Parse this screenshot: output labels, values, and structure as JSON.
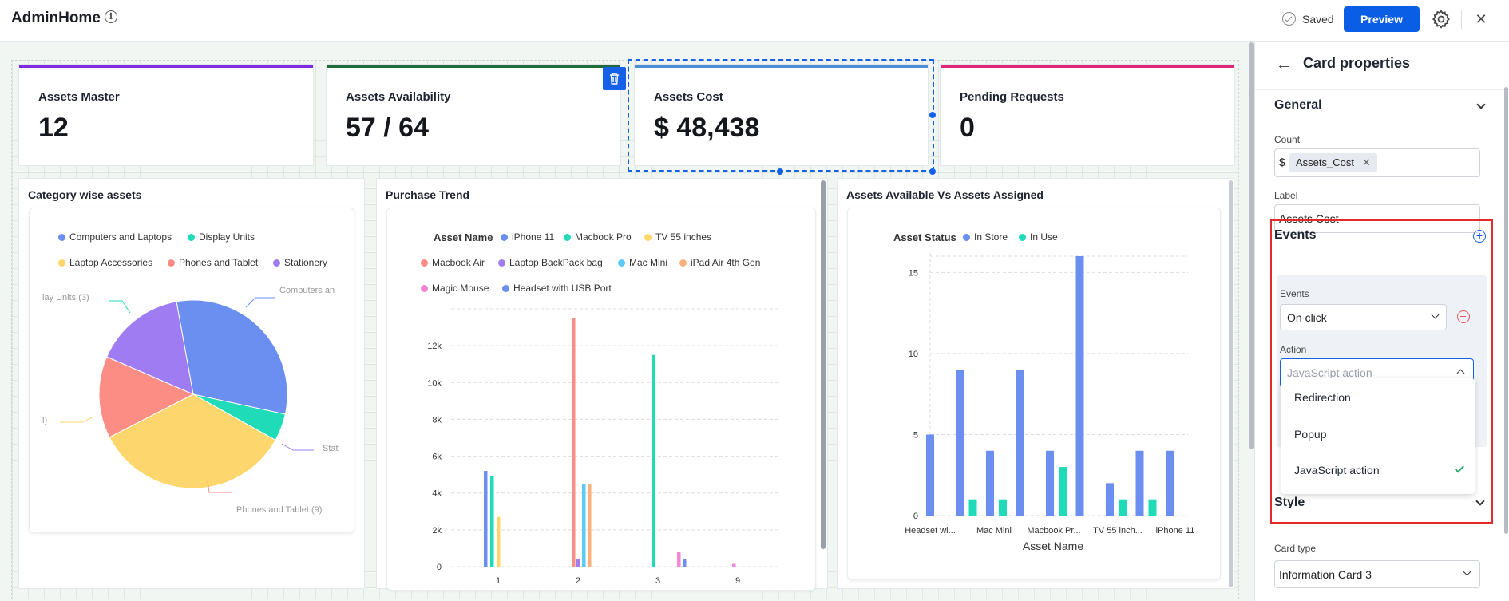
{
  "app": {
    "title": "AdminHome",
    "saved_label": "Saved",
    "preview_label": "Preview"
  },
  "kpis": [
    {
      "label": "Assets Master",
      "value": "12",
      "color": "#7b2ee0"
    },
    {
      "label": "Assets Availability",
      "value": "57 / 64",
      "color": "#1f6b3a"
    },
    {
      "label": "Assets Cost",
      "value": "$ 48,438",
      "color": "#4b8fd4"
    },
    {
      "label": "Pending Requests",
      "value": "0",
      "color": "#e0267d"
    }
  ],
  "panels": {
    "category": {
      "title": "Category wise assets",
      "legend": [
        "Computers and Laptops",
        "Display Units",
        "Laptop Accessories",
        "Phones and Tablet",
        "Stationery"
      ],
      "callouts": [
        "Computers an",
        "lay Units (3)",
        "l)",
        "Phones and Tablet (9)",
        "Stat"
      ]
    },
    "purchase": {
      "title": "Purchase Trend",
      "legend_title": "Asset Name",
      "legend": [
        "iPhone 11",
        "Macbook Pro",
        "TV 55 inches",
        "Macbook Air",
        "Laptop BackPack bag",
        "Mac Mini",
        "iPad Air 4th Gen",
        "Magic Mouse",
        "Headset with USB Port"
      ]
    },
    "available": {
      "title": "Assets Available Vs Assets Assigned",
      "legend_title": "Asset Status",
      "legend": [
        "In Store",
        "In Use"
      ]
    }
  },
  "chart_data": [
    {
      "type": "pie",
      "title": "Category wise assets",
      "categories": [
        "Computers and Laptops",
        "Display Units",
        "Laptop Accessories",
        "Phones and Tablet",
        "Stationery"
      ],
      "values": [
        20,
        3,
        22,
        9,
        10
      ],
      "colors": [
        "#6b8ff0",
        "#1fdbb8",
        "#fdd76d",
        "#fb8d84",
        "#a07cf2"
      ]
    },
    {
      "type": "bar",
      "title": "Purchase Trend",
      "categories": [
        "1",
        "2",
        "3",
        "9"
      ],
      "ylim": [
        0,
        14000
      ],
      "yticks": [
        "0",
        "2k",
        "4k",
        "6k",
        "8k",
        "10k",
        "12k"
      ],
      "series": [
        {
          "name": "iPhone 11",
          "color": "#6b8ff0",
          "values": [
            5200,
            0,
            0,
            0
          ]
        },
        {
          "name": "Macbook Pro",
          "color": "#1fdbb8",
          "values": [
            4900,
            0,
            11500,
            0
          ]
        },
        {
          "name": "TV 55 inches",
          "color": "#fdd76d",
          "values": [
            2700,
            0,
            0,
            0
          ]
        },
        {
          "name": "Macbook Air",
          "color": "#fb8d84",
          "values": [
            0,
            13500,
            0,
            0
          ]
        },
        {
          "name": "Laptop BackPack bag",
          "color": "#a07cf2",
          "values": [
            0,
            400,
            0,
            0
          ]
        },
        {
          "name": "Mac Mini",
          "color": "#5ec8f8",
          "values": [
            0,
            4500,
            0,
            0
          ]
        },
        {
          "name": "iPad Air 4th Gen",
          "color": "#fdb07a",
          "values": [
            0,
            4500,
            0,
            0
          ]
        },
        {
          "name": "Magic Mouse",
          "color": "#f585d6",
          "values": [
            0,
            0,
            800,
            150
          ]
        },
        {
          "name": "Headset with USB Port",
          "color": "#6b8ff0",
          "values": [
            0,
            0,
            400,
            0
          ]
        }
      ]
    },
    {
      "type": "bar",
      "title": "Assets Available Vs Assets Assigned",
      "xlabel": "Asset Name",
      "ylim": [
        0,
        16
      ],
      "yticks": [
        "0",
        "5",
        "10",
        "15"
      ],
      "xtick_labels": [
        "Headset wi...",
        "Mac Mini",
        "Macbook Pr...",
        "TV 55 inch...",
        "iPhone 11"
      ],
      "groups": 9,
      "series": [
        {
          "name": "In Store",
          "color": "#6b8ff0",
          "values": [
            5,
            9,
            4,
            9,
            4,
            16,
            2,
            4,
            4
          ]
        },
        {
          "name": "In Use",
          "color": "#1fdbb8",
          "values": [
            0,
            1,
            1,
            0,
            3,
            0,
            1,
            1,
            0
          ]
        }
      ]
    }
  ],
  "props": {
    "title": "Card properties",
    "general_label": "General",
    "count_label": "Count",
    "count_prefix": "$",
    "count_chip": "Assets_Cost",
    "label_label": "Label",
    "label_value": "Assets Cost",
    "events_section": "Events",
    "events_label": "Events",
    "events_value": "On click",
    "action_label": "Action",
    "action_placeholder": "JavaScript action",
    "action_options": [
      "Redirection",
      "Popup",
      "JavaScript action"
    ],
    "style_label": "Style",
    "card_type_label": "Card type",
    "card_type_value": "Information Card 3"
  }
}
